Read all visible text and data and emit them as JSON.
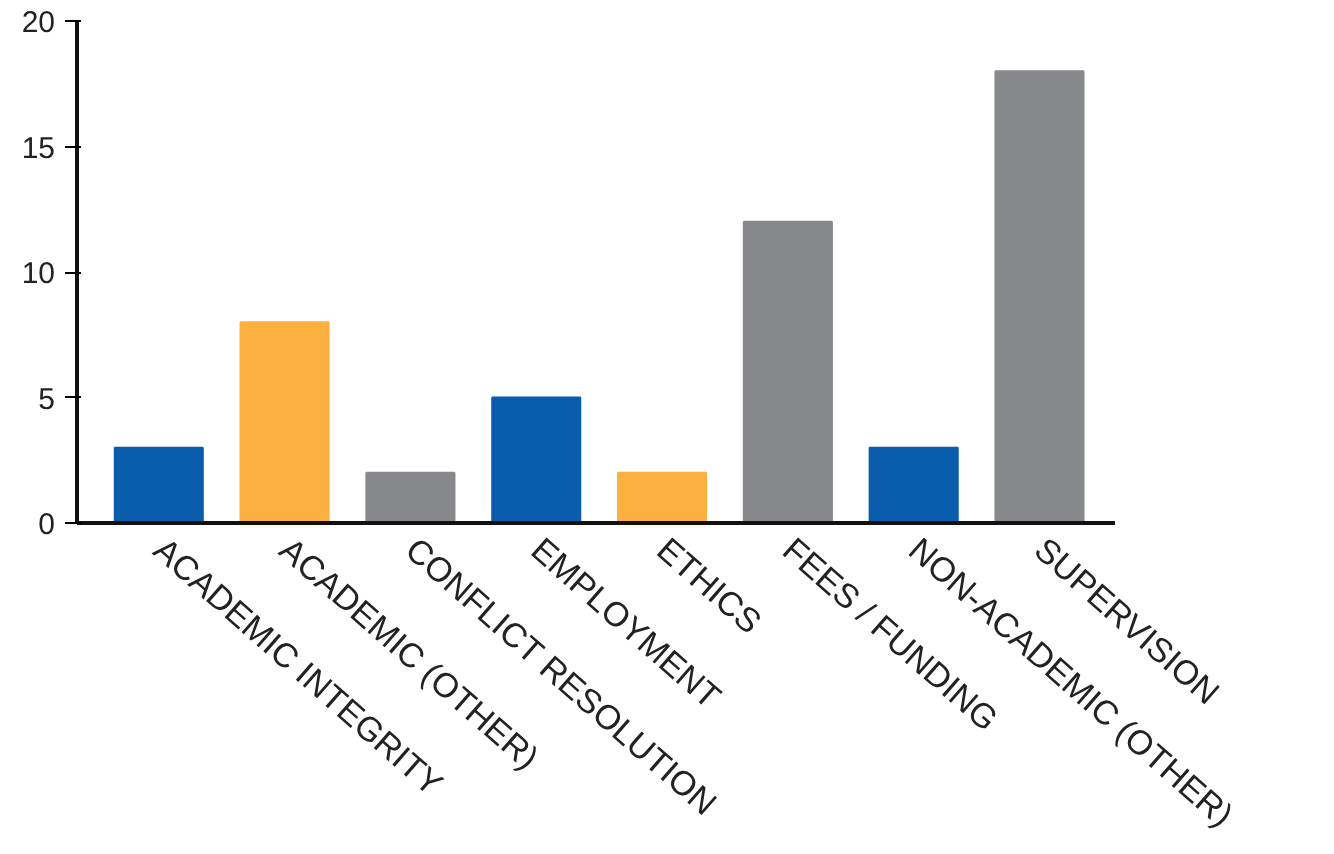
{
  "chart_data": {
    "type": "bar",
    "categories": [
      "ACADEMIC INTEGRITY",
      "ACADEMIC (OTHER)",
      "CONFLICT RESOLUTION",
      "EMPLOYMENT",
      "ETHICS",
      "FEES / FUNDING",
      "NON-ACADEMIC (OTHER)",
      "SUPERVISION"
    ],
    "values": [
      3,
      8,
      2,
      5,
      2,
      12,
      3,
      18
    ],
    "colors": [
      "#0a5cad",
      "#fbb040",
      "#87888c",
      "#0a5cad",
      "#fbb040",
      "#87888c",
      "#0a5cad",
      "#87888c"
    ],
    "ylim": [
      0,
      20
    ],
    "yticks": [
      0,
      5,
      10,
      15,
      20
    ],
    "grid": false
  }
}
